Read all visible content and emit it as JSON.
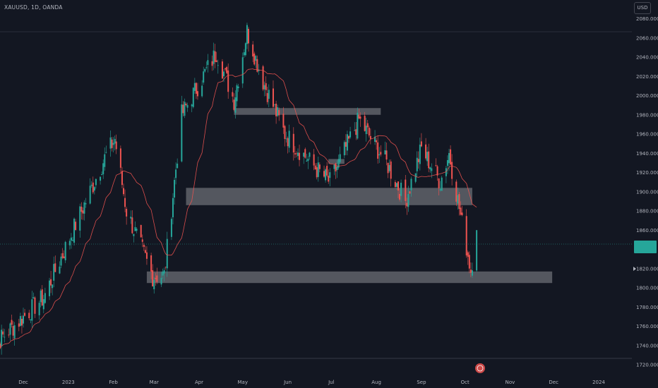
{
  "header": {
    "symbol_label": "XAUUSD, 1D, OANDA",
    "currency_button": "USD"
  },
  "colors": {
    "background": "#131722",
    "up": "#26a69a",
    "down": "#ef5350",
    "ma": "#ef5350",
    "zone": "#ffffff",
    "axis_text": "#b2b5be"
  },
  "icons": {
    "event_marker": "flag-icon",
    "axis_arrow": "play-arrow-icon"
  },
  "chart_data": {
    "type": "candlestick",
    "title": "XAUUSD, 1D, OANDA",
    "ylim": [
      1712,
      2072
    ],
    "y_ticks": [
      "2080.000",
      "2060.000",
      "2040.000",
      "2020.000",
      "2000.000",
      "1980.000",
      "1960.000",
      "1940.000",
      "1920.000",
      "1900.000",
      "1880.000",
      "1860.000",
      "1820.000",
      "1800.000",
      "1780.000",
      "1760.000",
      "1740.000",
      "1720.000"
    ],
    "x_ticks": [
      "Dec",
      "2023",
      "Feb",
      "Mar",
      "Apr",
      "May",
      "Jun",
      "Jul",
      "Aug",
      "Sep",
      "Oct",
      "Nov",
      "Dec",
      "2024"
    ],
    "key_points": [
      {
        "date": "2022-11-07",
        "close": 1735
      },
      {
        "date": "2022-12-15",
        "close": 1790
      },
      {
        "date": "2023-01-26",
        "close": 1935
      },
      {
        "date": "2023-02-02",
        "close": 1955
      },
      {
        "date": "2023-02-10",
        "close": 1880
      },
      {
        "date": "2023-02-28",
        "close": 1812
      },
      {
        "date": "2023-03-08",
        "close": 1813
      },
      {
        "date": "2023-03-20",
        "close": 1980
      },
      {
        "date": "2023-04-13",
        "close": 2045
      },
      {
        "date": "2023-04-25",
        "close": 1995
      },
      {
        "date": "2023-05-04",
        "close": 2067
      },
      {
        "date": "2023-05-15",
        "close": 2015
      },
      {
        "date": "2023-05-30",
        "close": 1960
      },
      {
        "date": "2023-06-23",
        "close": 1920
      },
      {
        "date": "2023-06-30",
        "close": 1910
      },
      {
        "date": "2023-07-20",
        "close": 1975
      },
      {
        "date": "2023-08-08",
        "close": 1930
      },
      {
        "date": "2023-08-21",
        "close": 1890
      },
      {
        "date": "2023-09-01",
        "close": 1945
      },
      {
        "date": "2023-09-14",
        "close": 1910
      },
      {
        "date": "2023-09-20",
        "close": 1940
      },
      {
        "date": "2023-10-05",
        "close": 1818
      },
      {
        "date": "2023-10-09",
        "close": 1860
      }
    ],
    "zones": [
      {
        "from": "2023-04-25",
        "to": "2023-08-04",
        "low": 1980,
        "high": 1987
      },
      {
        "from": "2023-03-23",
        "to": "2023-10-06",
        "low": 1886,
        "high": 1904
      },
      {
        "from": "2023-06-29",
        "to": "2023-07-10",
        "low": 1929,
        "high": 1934
      },
      {
        "from": "2023-02-24",
        "to": "2023-11-30",
        "low": 1805,
        "high": 1817
      }
    ],
    "last_price_level": 1848
  }
}
